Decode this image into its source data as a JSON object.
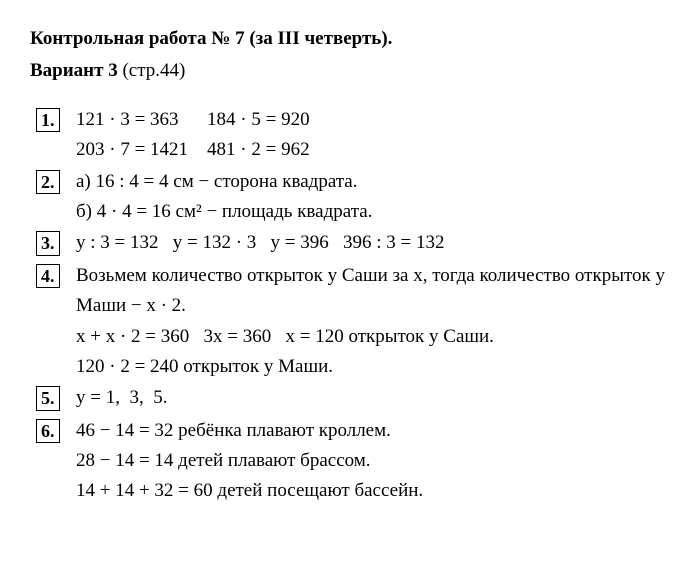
{
  "header": {
    "title": "Контрольная работа № 7 (за III четверть).",
    "variant_bold": "Вариант 3",
    "variant_rest": " (стр.44)"
  },
  "items": [
    {
      "num": "1.",
      "lines": [
        "121 · 3 = 363      184 · 5 = 920",
        "203 · 7 = 1421    481 · 2 = 962"
      ]
    },
    {
      "num": "2.",
      "lines": [
        "а) 16 : 4 = 4 см − сторона квадрата.",
        "б) 4 · 4 = 16 см² − площадь квадрата."
      ]
    },
    {
      "num": "3.",
      "lines": [
        "y : 3 = 132   y = 132 · 3   y = 396   396 : 3 = 132"
      ]
    },
    {
      "num": "4.",
      "lines_wrap": [
        "Возьмем количество открыток у Саши за x, тогда количество открыток у Маши − x · 2.",
        "x + x · 2 = 360   3x = 360   x = 120 открыток у Саши.",
        "120 · 2 = 240 открыток у Маши."
      ]
    },
    {
      "num": "5.",
      "lines": [
        "y = 1,  3,  5."
      ]
    },
    {
      "num": "6.",
      "lines": [
        "46 − 14 = 32 ребёнка плавают кроллем.",
        "28 − 14 = 14 детей плавают брассом.",
        "14 + 14 + 32 = 60 детей посещают бассейн."
      ]
    }
  ]
}
